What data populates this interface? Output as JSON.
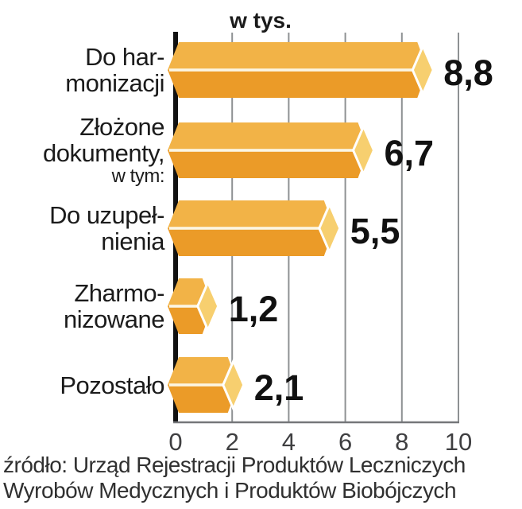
{
  "title": "w tys.",
  "chart_data": {
    "type": "bar",
    "orientation": "horizontal",
    "title": "w tys.",
    "categories": [
      "Do harmonizacji",
      "Złożone dokumenty, w tym:",
      "Do uzupełnienia",
      "Zharmonizowane",
      "Pozostało"
    ],
    "category_lines": [
      [
        "Do har-",
        "monizacji"
      ],
      [
        "Złożone",
        "dokumenty,",
        {
          "text": "w tym:",
          "small": true
        }
      ],
      [
        "Do uzupeł-",
        "nienia"
      ],
      [
        "Zharmo-",
        "nizowane"
      ],
      [
        "Pozostało"
      ]
    ],
    "values": [
      8.8,
      6.7,
      5.5,
      1.2,
      2.1
    ],
    "value_labels": [
      "8,8",
      "6,7",
      "5,5",
      "1,2",
      "2,1"
    ],
    "x_ticks": [
      0,
      2,
      4,
      6,
      8,
      10
    ],
    "xlim": [
      0,
      10
    ],
    "grid": true,
    "legend": false,
    "colors": {
      "bar_top": "#F2B347",
      "bar_bottom": "#EB9B28",
      "bar_cap": "#F7CF6F",
      "bar_separator": "#FCF6E3",
      "gridline": "#8E9193",
      "y_axis": "#111111",
      "x_baseline": "#75777A",
      "label_text": "#1B1B1B",
      "value_text": "#111111",
      "tick_text": "#3F3F41"
    }
  },
  "source": {
    "line1": "źródło: Urząd Rejestracji Produktów Leczniczych",
    "line2": "Wyrobów Medycznych i Produktów Biobójczych"
  }
}
